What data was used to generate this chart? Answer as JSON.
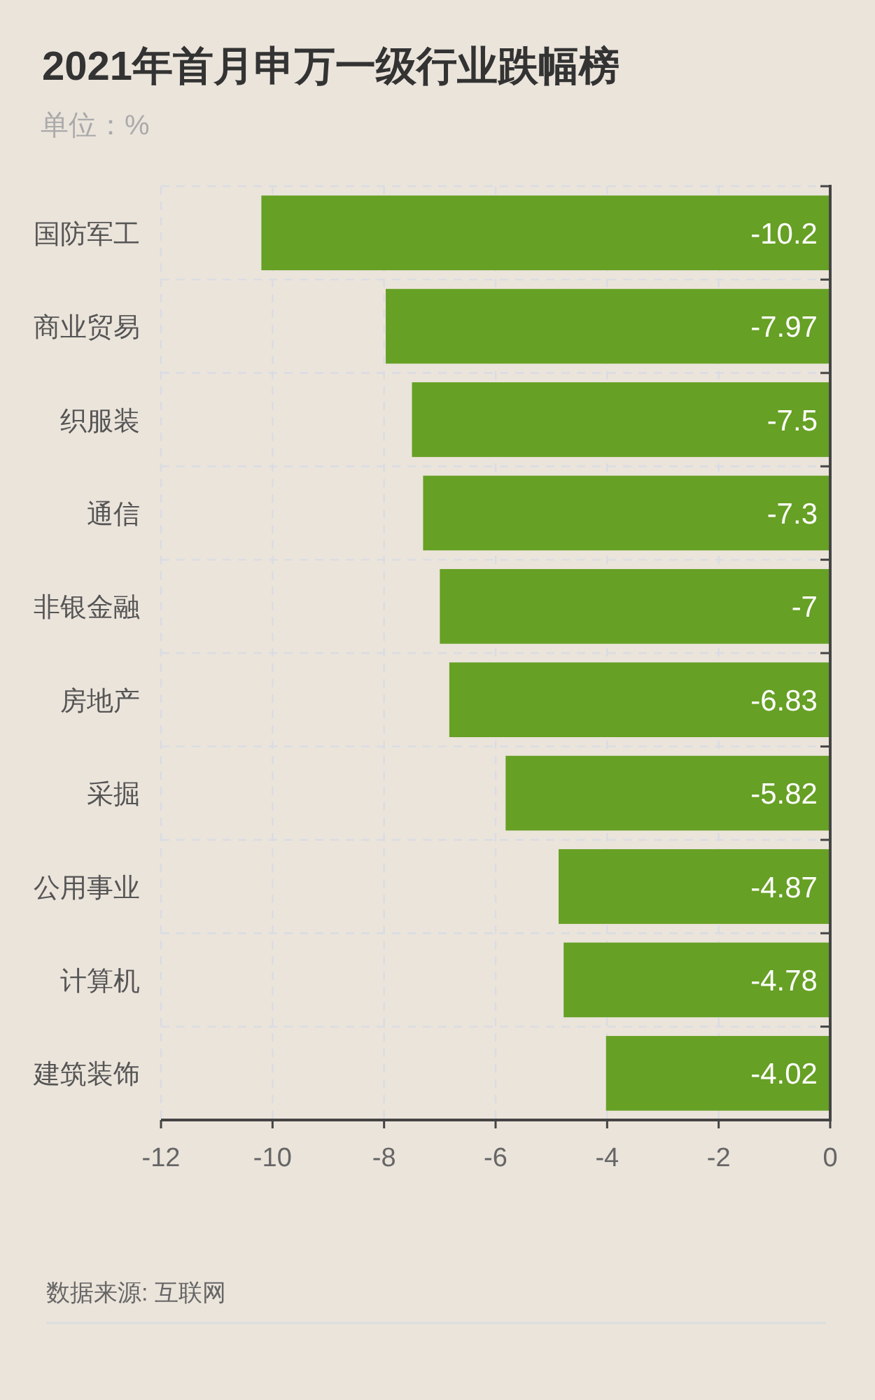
{
  "chart_data": {
    "type": "bar",
    "orientation": "horizontal",
    "title": "2021年首月申万一级行业跌幅榜",
    "subtitle": "单位：%",
    "categories": [
      "国防军工",
      "商业贸易",
      "织服装",
      "通信",
      "非银金融",
      "房地产",
      "采掘",
      "公用事业",
      "计算机",
      "建筑装饰"
    ],
    "values": [
      -10.2,
      -7.97,
      -7.5,
      -7.3,
      -7,
      -6.83,
      -5.82,
      -4.87,
      -4.78,
      -4.02
    ],
    "color": "#66a024",
    "xlim": [
      -12,
      0
    ],
    "xticks": [
      -12,
      -10,
      -8,
      -6,
      -4,
      -2,
      0
    ],
    "grid": true,
    "data_labels": true,
    "annotations": [
      "数据来源: 互联网"
    ]
  }
}
